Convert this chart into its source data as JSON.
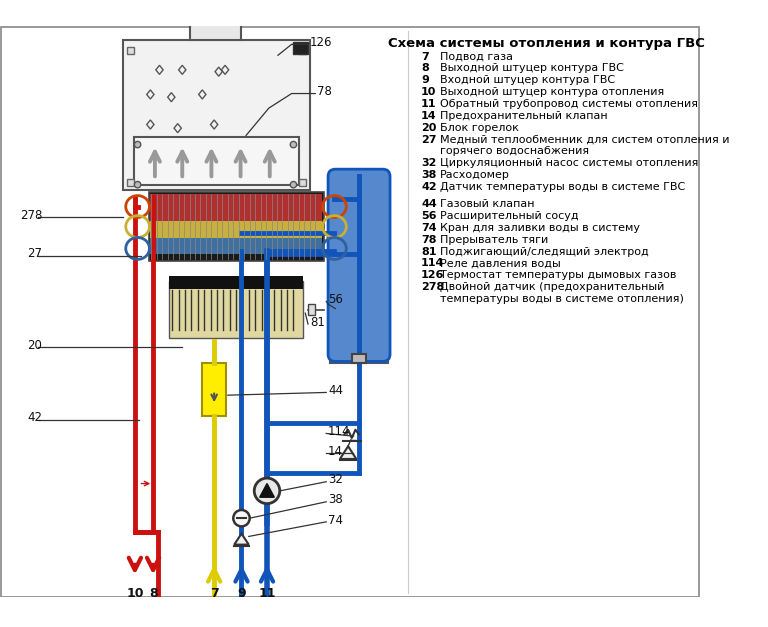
{
  "title": "Схема системы отопления и контура ГВС",
  "bg_color": "#ffffff",
  "legend_group1": [
    [
      "7",
      "Подвод газа"
    ],
    [
      "8",
      "Выходной штуцер контура ГВС"
    ],
    [
      "9",
      "Входной штуцер контура ГВС"
    ],
    [
      "10",
      "Выходной штуцер контура отопления"
    ],
    [
      "11",
      "Обратный трубопровод системы отопления"
    ],
    [
      "14",
      "Предохранительный клапан"
    ],
    [
      "20",
      "Блок горелок"
    ],
    [
      "27",
      "Медный теплообменник для систем отопления и"
    ],
    [
      "",
      "горячего водоснабжения"
    ],
    [
      "32",
      "Циркуляционный насос системы отопления"
    ],
    [
      "38",
      "Расходомер"
    ],
    [
      "42",
      "Датчик температуры воды в системе ГВС"
    ]
  ],
  "legend_group2": [
    [
      "44",
      "Газовый клапан"
    ],
    [
      "56",
      "Расширительный сосуд"
    ],
    [
      "74",
      "Кран для заливки воды в систему"
    ],
    [
      "78",
      "Прерыватель тяги"
    ],
    [
      "81",
      "Поджигающий/следящий электрод"
    ],
    [
      "114",
      "Реле давления воды"
    ],
    [
      "126",
      "Термостат температуры дымовых газов"
    ],
    [
      "278",
      "Двойной датчик (предохранительный"
    ],
    [
      "",
      "температуры воды в системе отопления)"
    ]
  ]
}
